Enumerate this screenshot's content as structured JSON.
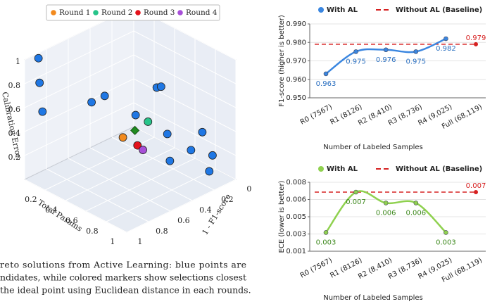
{
  "caption": [
    "reto solutions from Active Learning: blue points are",
    "ndidates, while colored markers show selections closest",
    "the ideal point using Euclidean distance in each rounds."
  ],
  "chart_data": [
    {
      "type": "scatter3d",
      "xlabel": "Total Params",
      "ylabel": "1 - F1-score",
      "zlabel": "Calibration Error",
      "xlim": [
        0,
        1
      ],
      "ylim": [
        0,
        1
      ],
      "zlim": [
        0,
        1
      ],
      "xticks": [
        0.2,
        0.4,
        0.6,
        0.8,
        1
      ],
      "yticks": [
        0,
        0.2,
        0.4,
        0.6,
        0.8,
        1
      ],
      "zticks": [
        0.2,
        0.4,
        0.6,
        0.8,
        1
      ],
      "grid": true,
      "legend": "top",
      "candidates": {
        "color": "#1f77e4",
        "x": [
          0.05,
          0.05,
          0.1,
          0.1,
          0.1,
          0.3,
          0.3,
          0.2,
          0.5,
          0.8,
          0.7,
          0.6,
          0.9,
          0.9
        ],
        "y": [
          0.92,
          0.91,
          0.93,
          0.48,
          0.36,
          0.07,
          0.03,
          0.17,
          0.16,
          0.12,
          0.13,
          0.23,
          0.12,
          0.15
        ],
        "z": [
          1.0,
          0.79,
          0.58,
          0.46,
          0.46,
          0.49,
          0.48,
          0.26,
          0.23,
          0.36,
          0.17,
          0.08,
          0.21,
          0.09
        ]
      },
      "ideal": {
        "color": "#1f8a1f",
        "x": 0.3,
        "y": 0.27,
        "z": 0.22
      },
      "series": [
        {
          "name": "Round 1",
          "color": "#f28a1e",
          "x": [
            0.3
          ],
          "y": [
            0.38
          ],
          "z": [
            0.21
          ]
        },
        {
          "name": "Round 2",
          "color": "#27c48a",
          "x": [
            0.3
          ],
          "y": [
            0.15
          ],
          "z": [
            0.24
          ]
        },
        {
          "name": "Round 3",
          "color": "#e3121b",
          "x": [
            0.4
          ],
          "y": [
            0.34
          ],
          "z": [
            0.17
          ]
        },
        {
          "name": "Round 4",
          "color": "#a74fd8",
          "x": [
            0.4
          ],
          "y": [
            0.29
          ],
          "z": [
            0.11
          ]
        }
      ]
    },
    {
      "type": "line",
      "categories": [
        "R0 (7567)",
        "R1 (8126)",
        "R2 (8,410)",
        "R3 (8,736)",
        "R4 (9,025)",
        "Full (68,119)"
      ],
      "xlabel": "Number of Labeled Samples",
      "ylabel": "F1-score (higher is better)",
      "ylim": [
        0.95,
        0.99
      ],
      "yticks": [
        {
          "value": 0.95,
          "label": "0.950"
        },
        {
          "value": 0.96,
          "label": "0.960"
        },
        {
          "value": 0.97,
          "label": "0.970"
        },
        {
          "value": 0.98,
          "label": "0.980"
        },
        {
          "value": 0.99,
          "label": "0.990"
        }
      ],
      "grid": true,
      "legend": "top",
      "series": [
        {
          "name": "With AL",
          "color": "#3a86e0",
          "label_color": "#2a6fc0",
          "values": [
            0.963,
            0.975,
            0.976,
            0.975,
            0.982,
            null
          ]
        }
      ],
      "baseline": {
        "name": "Without AL (Baseline)",
        "color": "#d62020",
        "value": 0.979
      }
    },
    {
      "type": "line",
      "categories": [
        "R0 (7567)",
        "R1 (8126)",
        "R2 (8,410)",
        "R3 (8,736)",
        "R4 (9,025)",
        "Full (68,119)"
      ],
      "xlabel": "Number of Labeled Samples",
      "ylabel": "ECE (lower is better)",
      "ylim": [
        0.001,
        0.008
      ],
      "yticks": [
        {
          "value": 0.001,
          "label": "0.001"
        },
        {
          "value": 0.00275,
          "label": "0.003"
        },
        {
          "value": 0.0045,
          "label": "0.005"
        },
        {
          "value": 0.00625,
          "label": "0.006"
        },
        {
          "value": 0.008,
          "label": "0.008"
        }
      ],
      "grid": true,
      "legend": "top",
      "series": [
        {
          "name": "With AL",
          "color": "#8fd14f",
          "label_color": "#3f8a1f",
          "values": [
            0.0029,
            0.007,
            0.0059,
            0.0059,
            0.0029,
            null
          ],
          "value_labels": [
            "0.003",
            "0.007",
            "0.006",
            "0.006",
            "0.003",
            null
          ]
        }
      ],
      "baseline": {
        "name": "Without AL (Baseline)",
        "color": "#d62020",
        "value": 0.007
      }
    }
  ]
}
